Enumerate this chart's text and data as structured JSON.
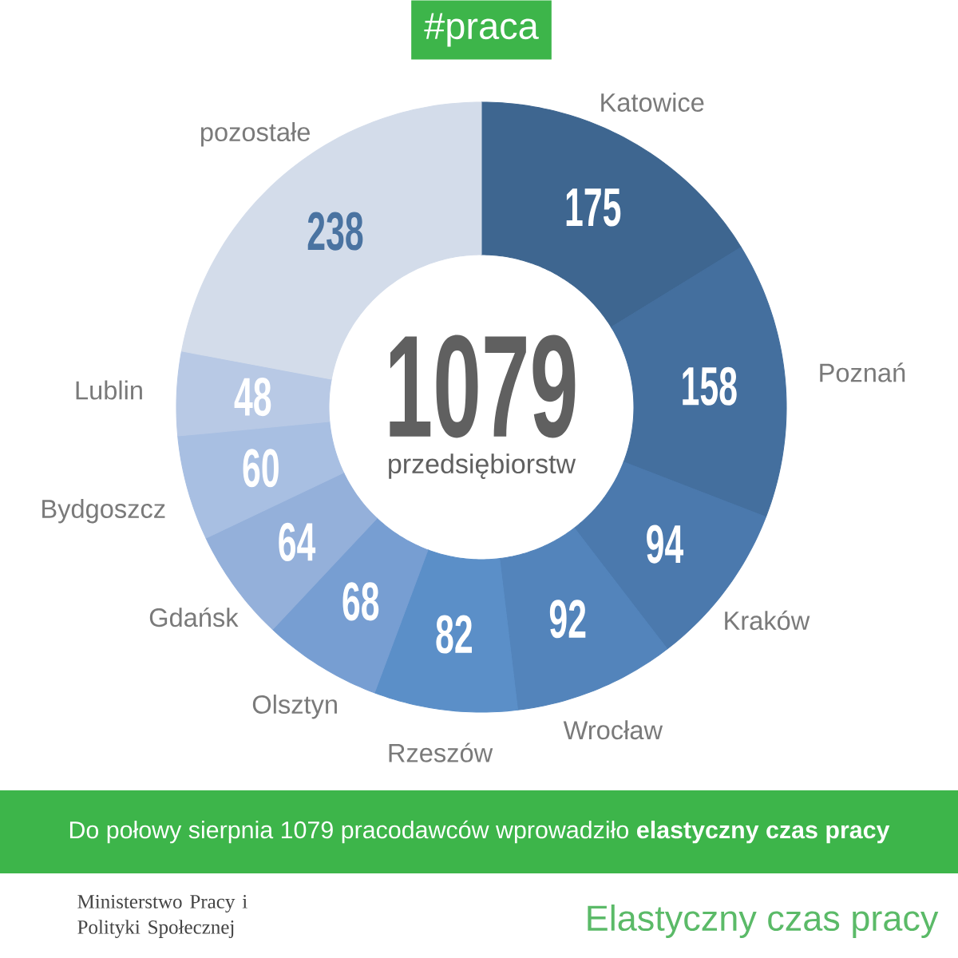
{
  "chart_data": {
    "type": "donut",
    "title": "#praca",
    "categories": [
      "Katowice",
      "Poznań",
      "Kraków",
      "Wrocław",
      "Rzeszów",
      "Olsztyn",
      "Gdańsk",
      "Bydgoszcz",
      "Lublin",
      "pozostałe"
    ],
    "values": [
      175,
      158,
      94,
      92,
      82,
      68,
      64,
      60,
      48,
      238
    ],
    "colors": [
      "#3e6690",
      "#446f9e",
      "#4b79ad",
      "#5384bb",
      "#5b8fc8",
      "#779ed2",
      "#94b0da",
      "#a8bfe2",
      "#b8c9e5",
      "#d3dcea"
    ],
    "data_labels": true,
    "annotations": [
      "1079",
      "przedsiębiorstw",
      "Do połowy sierpnia 1079 pracodawców wprowadziło **elastyczny czas pracy**",
      "Ministerstwo Pracy i Polityki Społecznej",
      "Elastyczny czas pracy"
    ]
  }
}
